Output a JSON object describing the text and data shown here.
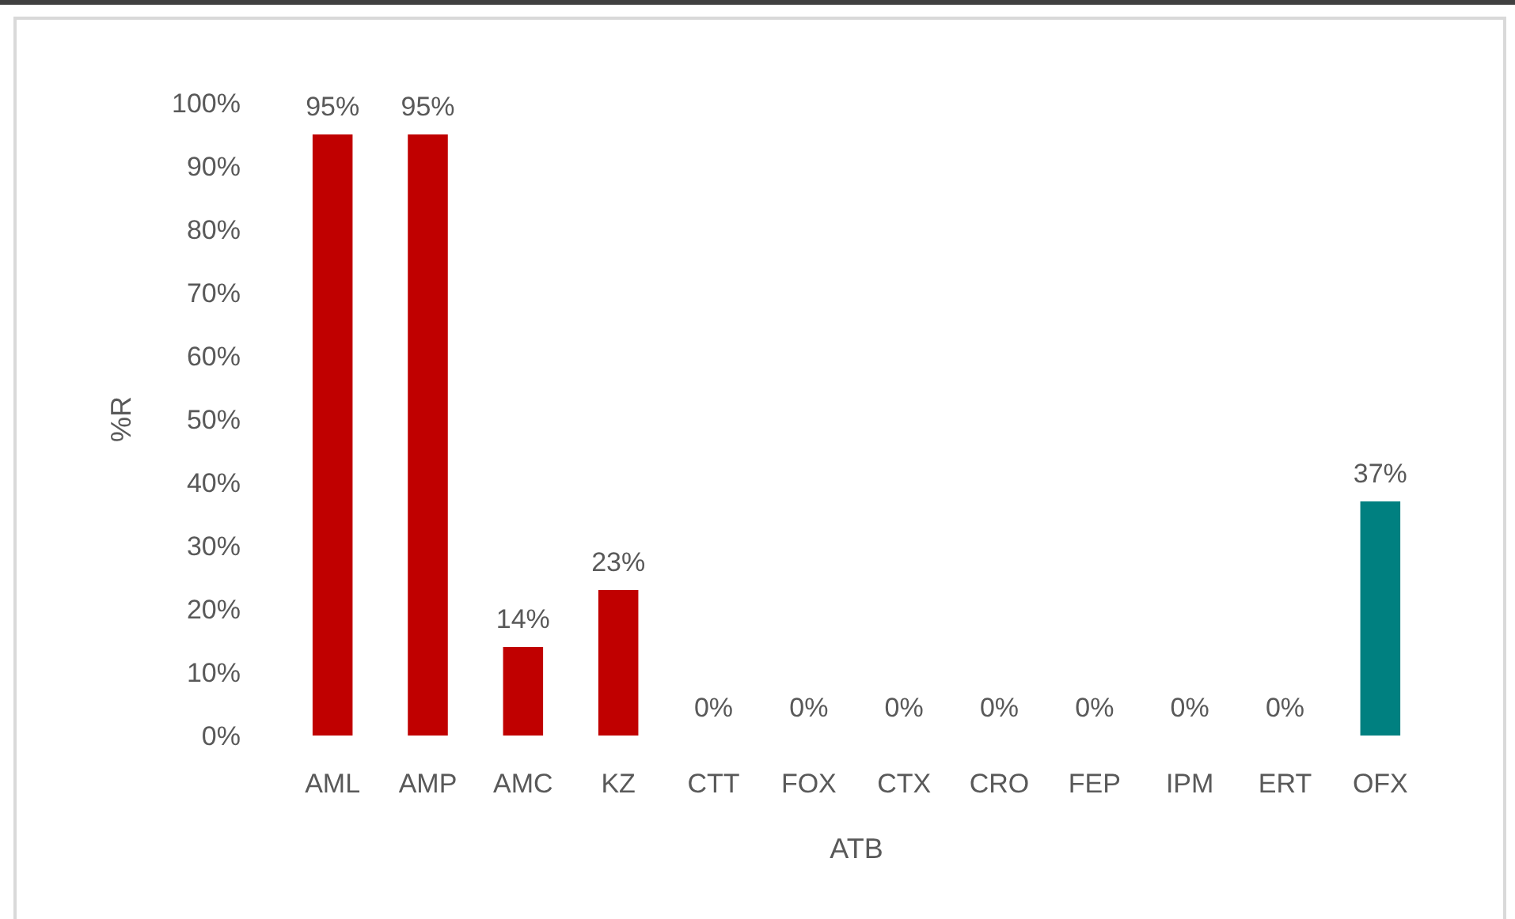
{
  "chart_data": {
    "type": "bar",
    "xlabel": "ATB",
    "ylabel": "%R",
    "categories": [
      "AML",
      "AMP",
      "AMC",
      "KZ",
      "CTT",
      "FOX",
      "CTX",
      "CRO",
      "FEP",
      "IPM",
      "ERT",
      "OFX"
    ],
    "values": [
      95,
      95,
      14,
      23,
      0,
      0,
      0,
      0,
      0,
      0,
      0,
      37
    ],
    "colors": [
      "#c00000",
      "#c00000",
      "#c00000",
      "#c00000",
      "#c00000",
      "#c00000",
      "#c00000",
      "#c00000",
      "#c00000",
      "#c00000",
      "#c00000",
      "#008080"
    ],
    "value_labels": [
      "95%",
      "95%",
      "14%",
      "23%",
      "0%",
      "0%",
      "0%",
      "0%",
      "0%",
      "0%",
      "0%",
      "37%"
    ],
    "ylim": [
      0,
      100
    ],
    "yticks": [
      {
        "value": 0,
        "label": "0%"
      },
      {
        "value": 10,
        "label": "10%"
      },
      {
        "value": 20,
        "label": "20%"
      },
      {
        "value": 30,
        "label": "30%"
      },
      {
        "value": 40,
        "label": "40%"
      },
      {
        "value": 50,
        "label": "50%"
      },
      {
        "value": 60,
        "label": "60%"
      },
      {
        "value": 70,
        "label": "70%"
      },
      {
        "value": 80,
        "label": "80%"
      },
      {
        "value": 90,
        "label": "90%"
      },
      {
        "value": 100,
        "label": "100%"
      }
    ],
    "grid": false
  }
}
